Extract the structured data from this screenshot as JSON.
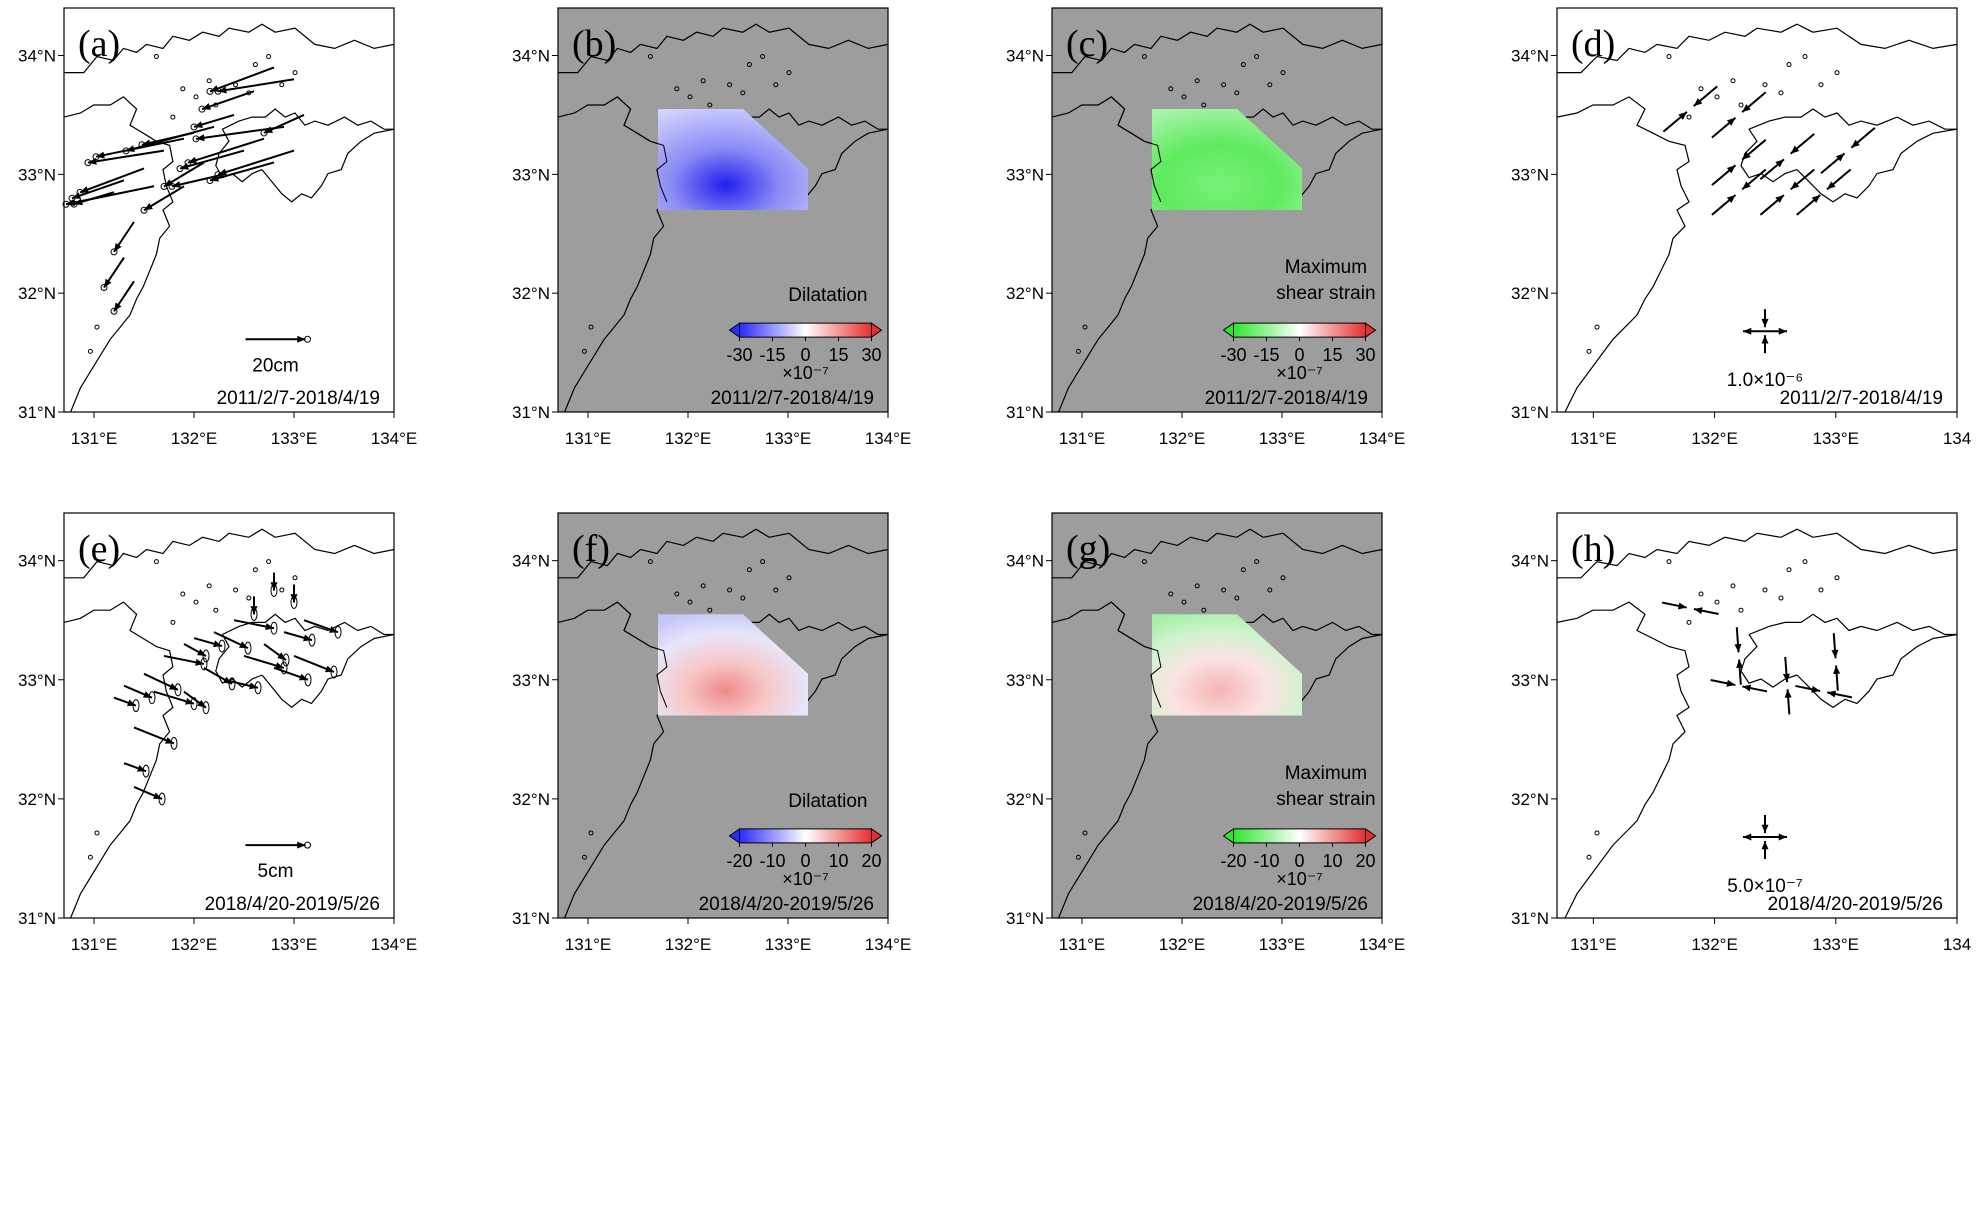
{
  "figure": {
    "panels": [
      {
        "id": "a",
        "label": "(a)",
        "content": "displacement",
        "scale_label": "20cm",
        "period": "2011/2/7-2018/4/19"
      },
      {
        "id": "b",
        "label": "(b)",
        "content": "dilatation",
        "colorbar_title": "Dilatation",
        "ticks": [
          "-30",
          "-15",
          "0",
          "15",
          "30"
        ],
        "multiplier": "×10⁻⁷",
        "period": "2011/2/7-2018/4/19",
        "colormap": "bwr",
        "pattern": "negative"
      },
      {
        "id": "c",
        "label": "(c)",
        "content": "shear",
        "colorbar_title_line1": "Maximum",
        "colorbar_title_line2": "shear strain",
        "ticks": [
          "-30",
          "-15",
          "0",
          "15",
          "30"
        ],
        "multiplier": "×10⁻⁷",
        "period": "2011/2/7-2018/4/19",
        "colormap": "gwr",
        "pattern": "green"
      },
      {
        "id": "d",
        "label": "(d)",
        "content": "principal",
        "scale_label": "1.0×10⁻⁶",
        "period": "2011/2/7-2018/4/19"
      },
      {
        "id": "e",
        "label": "(e)",
        "content": "displacement",
        "scale_label": "5cm",
        "period": "2018/4/20-2019/5/26"
      },
      {
        "id": "f",
        "label": "(f)",
        "content": "dilatation",
        "colorbar_title": "Dilatation",
        "ticks": [
          "-20",
          "-10",
          "0",
          "10",
          "20"
        ],
        "multiplier": "×10⁻⁷",
        "period": "2018/4/20-2019/5/26",
        "colormap": "bwr",
        "pattern": "mixed"
      },
      {
        "id": "g",
        "label": "(g)",
        "content": "shear",
        "colorbar_title_line1": "Maximum",
        "colorbar_title_line2": "shear strain",
        "ticks": [
          "-20",
          "-10",
          "0",
          "10",
          "20"
        ],
        "multiplier": "×10⁻⁷",
        "period": "2018/4/20-2019/5/26",
        "colormap": "gwr",
        "pattern": "mixed"
      },
      {
        "id": "h",
        "label": "(h)",
        "content": "principal",
        "scale_label": "5.0×10⁻⁷",
        "period": "2018/4/20-2019/5/26"
      }
    ],
    "axes": {
      "x_ticks": [
        "131°E",
        "132°E",
        "133°E",
        "134°E"
      ],
      "x_ticks_last_d": [
        "131°E",
        "132°E",
        "133°E",
        "134"
      ],
      "y_ticks": [
        "31°N",
        "32°N",
        "33°N",
        "34°N"
      ],
      "lon_range": [
        130.7,
        134.0
      ],
      "lat_range": [
        31.0,
        34.4
      ]
    },
    "colors": {
      "map_background_gray": "#9d9d9d",
      "land_white": "#ffffff",
      "coast": "#000000",
      "blue": "#2a2aff",
      "red": "#e63030",
      "green": "#2ee62e"
    }
  }
}
